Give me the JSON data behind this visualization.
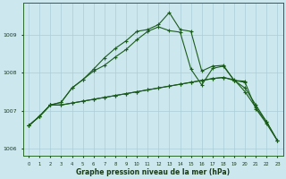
{
  "xlabel": "Graphe pression niveau de la mer (hPa)",
  "x_ticks": [
    0,
    1,
    2,
    3,
    4,
    5,
    6,
    7,
    8,
    9,
    10,
    11,
    12,
    13,
    14,
    15,
    16,
    17,
    18,
    19,
    20,
    21,
    22,
    23
  ],
  "ylim": [
    1005.8,
    1009.85
  ],
  "yticks": [
    1006,
    1007,
    1008,
    1009
  ],
  "bg_color": "#cce8ee",
  "grid_color": "#aacdd6",
  "line_color": "#1a5c1a",
  "line1_x": [
    0,
    1,
    2,
    3,
    4,
    5,
    6,
    7,
    8,
    9,
    10,
    11,
    12,
    13,
    14,
    15,
    16,
    17,
    18,
    19,
    20,
    21,
    22,
    23
  ],
  "line1_y": [
    1006.6,
    1006.85,
    1007.15,
    1007.15,
    1007.2,
    1007.25,
    1007.3,
    1007.35,
    1007.4,
    1007.45,
    1007.5,
    1007.55,
    1007.6,
    1007.65,
    1007.7,
    1007.75,
    1007.8,
    1007.85,
    1007.88,
    1007.8,
    1007.6,
    1007.15,
    1006.7,
    1006.2
  ],
  "line2_x": [
    0,
    1,
    2,
    3,
    4,
    5,
    6,
    7,
    8,
    9,
    10,
    11,
    12,
    13,
    14,
    15,
    16,
    17,
    18,
    19,
    20,
    21,
    22,
    23
  ],
  "line2_y": [
    1006.6,
    1006.85,
    1007.15,
    1007.15,
    1007.2,
    1007.25,
    1007.3,
    1007.35,
    1007.4,
    1007.45,
    1007.5,
    1007.55,
    1007.6,
    1007.65,
    1007.7,
    1007.75,
    1007.8,
    1007.85,
    1007.88,
    1007.82,
    1007.5,
    1007.08,
    1006.7,
    1006.2
  ],
  "line3_x": [
    0,
    1,
    2,
    3,
    4,
    5,
    6,
    7,
    8,
    9,
    10,
    11,
    12,
    13,
    14,
    15,
    16,
    17,
    18,
    19,
    20
  ],
  "line3_y": [
    1006.6,
    1006.85,
    1007.15,
    1007.22,
    1007.6,
    1007.82,
    1008.1,
    1008.4,
    1008.65,
    1008.85,
    1009.1,
    1009.15,
    1009.28,
    1009.6,
    1009.15,
    1009.1,
    1008.05,
    1008.18,
    1008.2,
    1007.8,
    1007.78
  ],
  "line4_x": [
    0,
    1,
    2,
    3,
    4,
    5,
    6,
    7,
    8,
    9,
    10,
    11,
    12,
    13,
    14,
    15,
    16,
    17,
    18,
    19,
    20,
    21,
    22,
    23
  ],
  "line4_y": [
    1006.6,
    1006.85,
    1007.15,
    1007.22,
    1007.6,
    1007.82,
    1008.05,
    1008.2,
    1008.42,
    1008.62,
    1008.88,
    1009.1,
    1009.22,
    1009.12,
    1009.08,
    1008.1,
    1007.68,
    1008.12,
    1008.18,
    1007.8,
    1007.75,
    1007.05,
    1006.65,
    1006.2
  ],
  "figsize": [
    3.2,
    2.0
  ],
  "dpi": 100
}
